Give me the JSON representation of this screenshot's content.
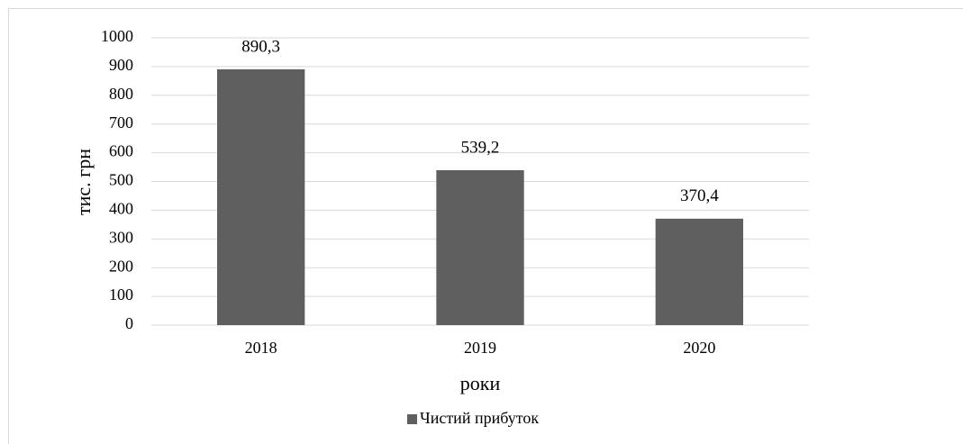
{
  "chart_data": {
    "type": "bar",
    "categories": [
      "2018",
      "2019",
      "2020"
    ],
    "series": [
      {
        "name": "Чистий прибуток",
        "color": "#5f5f5f",
        "values": [
          890.3,
          539.2,
          370.4
        ],
        "value_labels": [
          "890,3",
          "539,2",
          "370,4"
        ]
      }
    ],
    "ylim": [
      0,
      1000
    ],
    "yticks": [
      0,
      100,
      200,
      300,
      400,
      500,
      600,
      700,
      800,
      900,
      1000
    ],
    "y_label": "тис. грн",
    "x_label": "роки",
    "grid": true,
    "legend": "bottom"
  }
}
